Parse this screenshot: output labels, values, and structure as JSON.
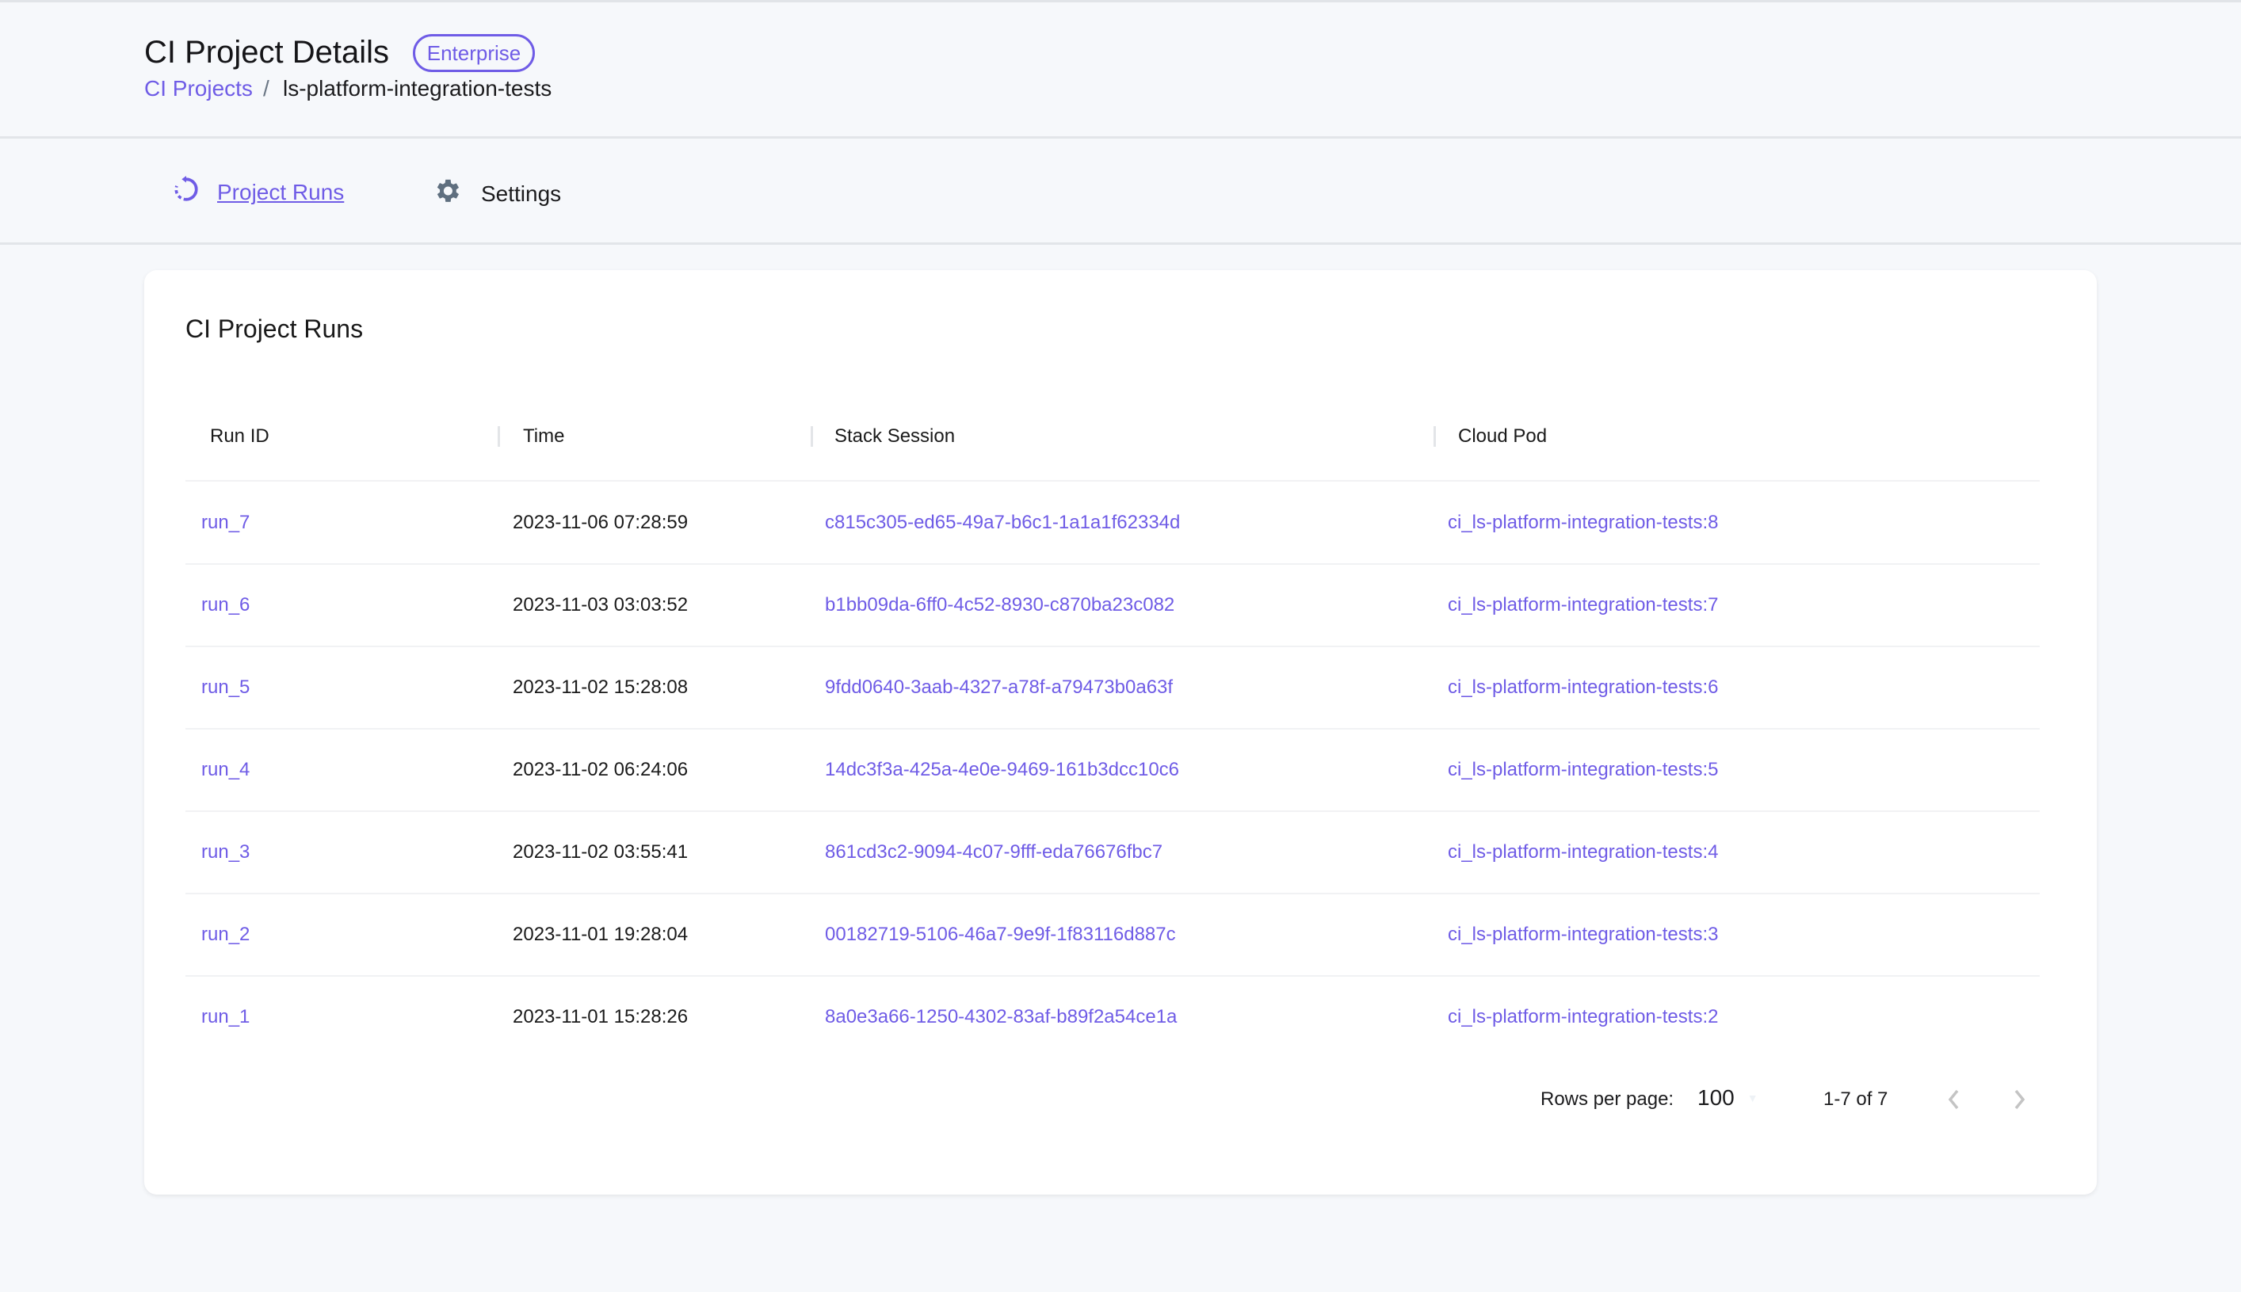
{
  "header": {
    "title": "CI Project Details",
    "badge": "Enterprise",
    "breadcrumb": {
      "parent": "CI Projects",
      "separator": "/",
      "current": "ls-platform-integration-tests"
    }
  },
  "tabs": [
    {
      "label": "Project Runs",
      "icon": "history-icon",
      "active": true
    },
    {
      "label": "Settings",
      "icon": "gear-icon",
      "active": false
    }
  ],
  "card": {
    "title": "CI Project Runs",
    "columns": [
      "Run ID",
      "Time",
      "Stack Session",
      "Cloud Pod"
    ],
    "rows": [
      [
        "run_7",
        "2023-11-06 07:28:59",
        "c815c305-ed65-49a7-b6c1-1a1a1f62334d",
        "ci_ls-platform-integration-tests:8"
      ],
      [
        "run_6",
        "2023-11-03 03:03:52",
        "b1bb09da-6ff0-4c52-8930-c870ba23c082",
        "ci_ls-platform-integration-tests:7"
      ],
      [
        "run_5",
        "2023-11-02 15:28:08",
        "9fdd0640-3aab-4327-a78f-a79473b0a63f",
        "ci_ls-platform-integration-tests:6"
      ],
      [
        "run_4",
        "2023-11-02 06:24:06",
        "14dc3f3a-425a-4e0e-9469-161b3dcc10c6",
        "ci_ls-platform-integration-tests:5"
      ],
      [
        "run_3",
        "2023-11-02 03:55:41",
        "861cd3c2-9094-4c07-9fff-eda76676fbc7",
        "ci_ls-platform-integration-tests:4"
      ],
      [
        "run_2",
        "2023-11-01 19:28:04",
        "00182719-5106-46a7-9e9f-1f83116d887c",
        "ci_ls-platform-integration-tests:3"
      ],
      [
        "run_1",
        "2023-11-01 15:28:26",
        "8a0e3a66-1250-4302-83af-b89f2a54ce1a",
        "ci_ls-platform-integration-tests:2"
      ]
    ],
    "pagination": {
      "rows_per_page_label": "Rows per page:",
      "rows_per_page": "100",
      "range": "1-7 of 7"
    }
  },
  "colors": {
    "accent": "#6f5ce6",
    "background": "#f6f8fb",
    "text": "#1c1c1e"
  }
}
